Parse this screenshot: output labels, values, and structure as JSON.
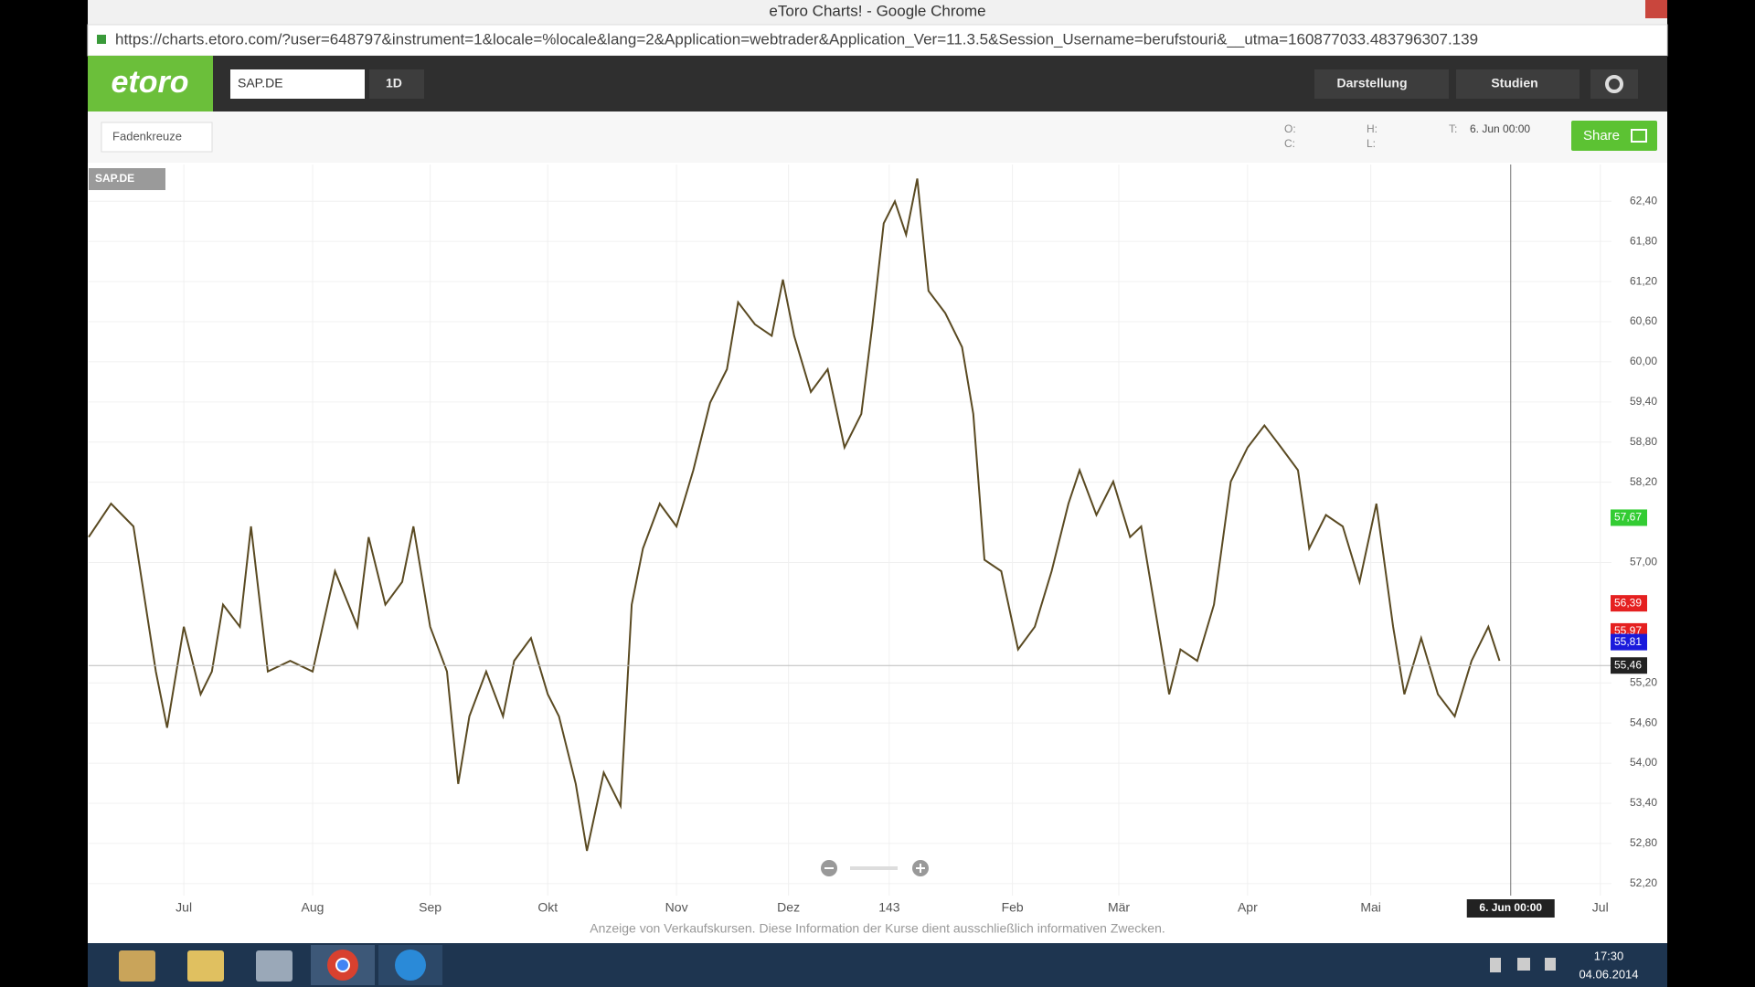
{
  "browser": {
    "title": "eToro Charts! - Google Chrome",
    "url": "https://charts.etoro.com/?user=648797&instrument=1&locale=%locale&lang=2&Application=webtrader&Application_Ver=11.3.5&Session_Username=berufstouri&__utma=160877033.483796307.139"
  },
  "app": {
    "logo": "etoro",
    "symbol": "SAP.DE",
    "interval": "1D",
    "menu": [
      "Darstellung",
      "Studien"
    ],
    "toolbar": {
      "crosshair": "Fadenkreuze",
      "o": "O:",
      "c": "C:",
      "h": "H:",
      "l": "L:",
      "t": "T:",
      "time": "6. Jun 00:00",
      "share": "Share"
    }
  },
  "chart_data": {
    "type": "line",
    "x": [
      0,
      4,
      8,
      12,
      14,
      17,
      20,
      22,
      24,
      27,
      29,
      32,
      36,
      40,
      44,
      48,
      50,
      53,
      56,
      58,
      61,
      64,
      66,
      68,
      71,
      74,
      76,
      79,
      82,
      84,
      87,
      89,
      92,
      95,
      97,
      99,
      102,
      105,
      108,
      111,
      114,
      116,
      119,
      122,
      124,
      126,
      129,
      132,
      135,
      138,
      140,
      142,
      144,
      146,
      148,
      150,
      153,
      156,
      158,
      160,
      163,
      166,
      169,
      172,
      175,
      177,
      180,
      183,
      186,
      188,
      191,
      193,
      195,
      198,
      201,
      204,
      207,
      210,
      213,
      216,
      218,
      221,
      224,
      227,
      230,
      233,
      235,
      238,
      241,
      244,
      247,
      250,
      252
    ],
    "series": [
      {
        "name": "SAP.DE",
        "color": "#5a4a22",
        "values": [
          57.38,
          57.88,
          57.54,
          55.37,
          54.53,
          56.04,
          55.03,
          55.37,
          56.37,
          56.04,
          57.54,
          55.37,
          55.53,
          55.37,
          56.87,
          56.04,
          57.38,
          56.37,
          56.71,
          57.54,
          56.04,
          55.37,
          53.69,
          54.7,
          55.37,
          54.7,
          55.53,
          55.87,
          55.03,
          54.7,
          53.69,
          52.69,
          53.86,
          53.36,
          56.37,
          57.21,
          57.88,
          57.54,
          58.38,
          59.39,
          59.89,
          60.89,
          60.56,
          60.39,
          61.23,
          60.39,
          59.55,
          59.89,
          58.72,
          59.22,
          60.56,
          62.07,
          62.4,
          61.9,
          62.74,
          61.06,
          60.73,
          60.22,
          59.22,
          57.04,
          56.87,
          55.7,
          56.04,
          56.87,
          57.88,
          58.38,
          57.71,
          58.21,
          57.38,
          57.54,
          56.04,
          55.03,
          55.7,
          55.53,
          56.37,
          58.21,
          58.72,
          59.05,
          58.72,
          58.38,
          57.21,
          57.71,
          57.54,
          56.71,
          57.88,
          56.04,
          55.03,
          55.87,
          55.03,
          54.7,
          55.53,
          56.04,
          55.53
        ]
      }
    ],
    "xlim": [
      0,
      272
    ],
    "ylim": [
      52.02,
      62.95
    ],
    "xticks": [
      {
        "value": 17,
        "label": "Jul"
      },
      {
        "value": 40,
        "label": "Aug"
      },
      {
        "value": 61,
        "label": "Sep"
      },
      {
        "value": 82,
        "label": "Okt"
      },
      {
        "value": 105,
        "label": "Nov"
      },
      {
        "value": 125,
        "label": "Dez"
      },
      143,
      {
        "value": 165,
        "label": "Feb"
      },
      {
        "value": 184,
        "label": "Mär"
      },
      {
        "value": 207,
        "label": "Apr"
      },
      {
        "value": 229,
        "label": "Mai"
      },
      {
        "value": 270,
        "label": "Jul"
      }
    ],
    "yticks": [
      {
        "value": 62.4,
        "label": "62,40"
      },
      {
        "value": 61.8,
        "label": "61,80"
      },
      {
        "value": 61.2,
        "label": "61,20"
      },
      {
        "value": 60.6,
        "label": "60,60"
      },
      {
        "value": 60,
        "label": "60,00"
      },
      {
        "value": 59.4,
        "label": "59,40"
      },
      {
        "value": 58.8,
        "label": "58,80"
      },
      {
        "value": 58.2,
        "label": "58,20"
      },
      {
        "value": 57,
        "label": "57,00"
      },
      {
        "value": 55.2,
        "label": "55,20"
      },
      {
        "value": 54.6,
        "label": "54,60"
      },
      {
        "value": 54,
        "label": "54,00"
      },
      {
        "value": 53.4,
        "label": "53,40"
      },
      {
        "value": 52.8,
        "label": "52,80"
      },
      {
        "value": 52.2,
        "label": "52,20"
      }
    ],
    "grid": true,
    "price_labels": [
      {
        "value": 57.67,
        "label": "57,67",
        "color": "#33cc33"
      },
      {
        "value": 56.39,
        "label": "56,39",
        "color": "#e52020"
      },
      {
        "value": 55.97,
        "label": "55,97",
        "color": "#e52020"
      },
      {
        "value": 55.81,
        "label": "55,81",
        "color": "#1a1adc"
      }
    ],
    "crosshair": {
      "x": 254,
      "y": 55.46,
      "x_label": "6. Jun 00:00",
      "y_label": "55,46"
    }
  },
  "footer": "Anzeige von Verkaufskursen. Diese Information der Kurse dient ausschließlich informativen Zwecken.",
  "taskbar": {
    "time": "17:30",
    "date": "04.06.2014"
  }
}
